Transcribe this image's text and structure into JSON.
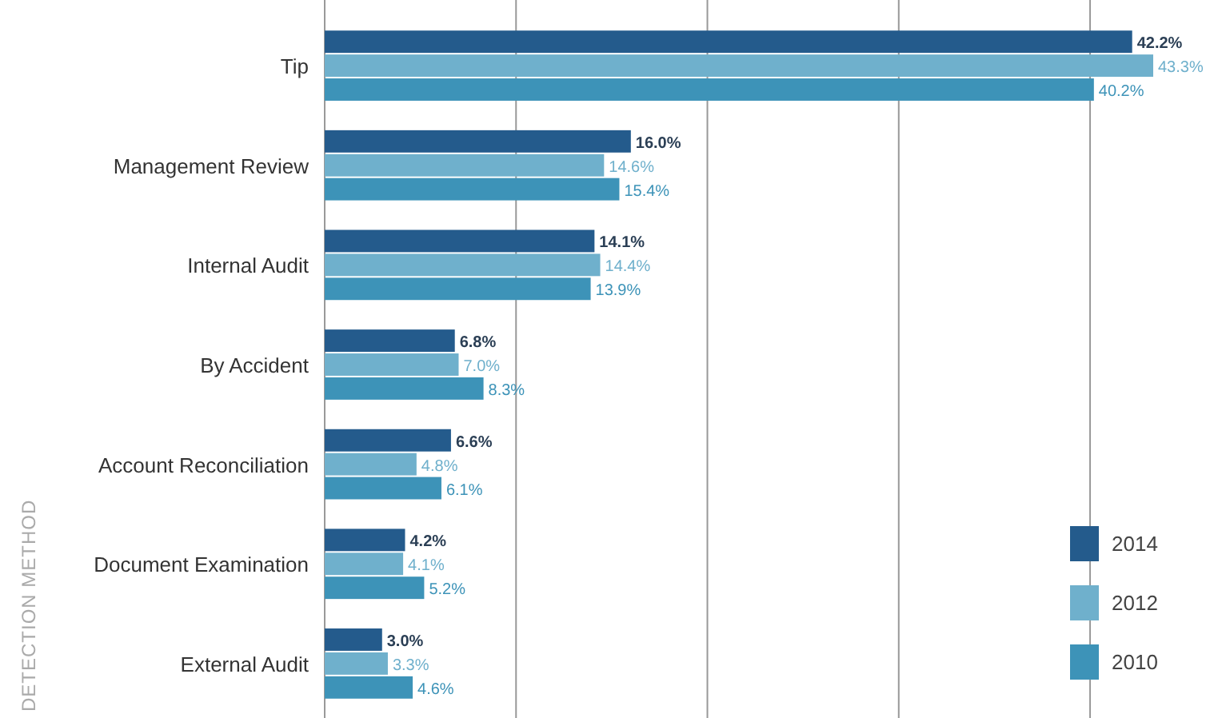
{
  "chart_data": {
    "type": "bar",
    "orientation": "horizontal",
    "ylabel": "DETECTION METHOD",
    "categories": [
      "Tip",
      "Management Review",
      "Internal Audit",
      "By Accident",
      "Account Reconciliation",
      "Document Examination",
      "External Audit"
    ],
    "series": [
      {
        "name": "2014",
        "color": "#245b8c",
        "values": [
          42.2,
          16.0,
          14.1,
          6.8,
          6.6,
          4.2,
          3.0
        ],
        "value_labels": [
          "42.2%",
          "16.0%",
          "14.1%",
          "6.8%",
          "6.6%",
          "4.2%",
          "3.0%"
        ]
      },
      {
        "name": "2012",
        "color": "#6fb0cc",
        "values": [
          43.3,
          14.6,
          14.4,
          7.0,
          4.8,
          4.1,
          3.3
        ],
        "value_labels": [
          "43.3%",
          "14.6%",
          "14.4%",
          "7.0%",
          "4.8%",
          "4.1%",
          "3.3%"
        ]
      },
      {
        "name": "2010",
        "color": "#3d93b8",
        "values": [
          40.2,
          15.4,
          13.9,
          8.3,
          6.1,
          5.2,
          4.6
        ],
        "value_labels": [
          "40.2%",
          "15.4%",
          "13.9%",
          "8.3%",
          "6.1%",
          "5.2%",
          "4.6%"
        ]
      }
    ],
    "xticks": [
      {
        "value": 0,
        "label": null
      },
      {
        "value": 10,
        "label": null
      },
      {
        "value": 20,
        "label": null
      },
      {
        "value": 30,
        "label": null
      },
      {
        "value": 40,
        "label": null
      }
    ],
    "tick_labels": "y",
    "grid": "x",
    "legend": "bottom right"
  }
}
